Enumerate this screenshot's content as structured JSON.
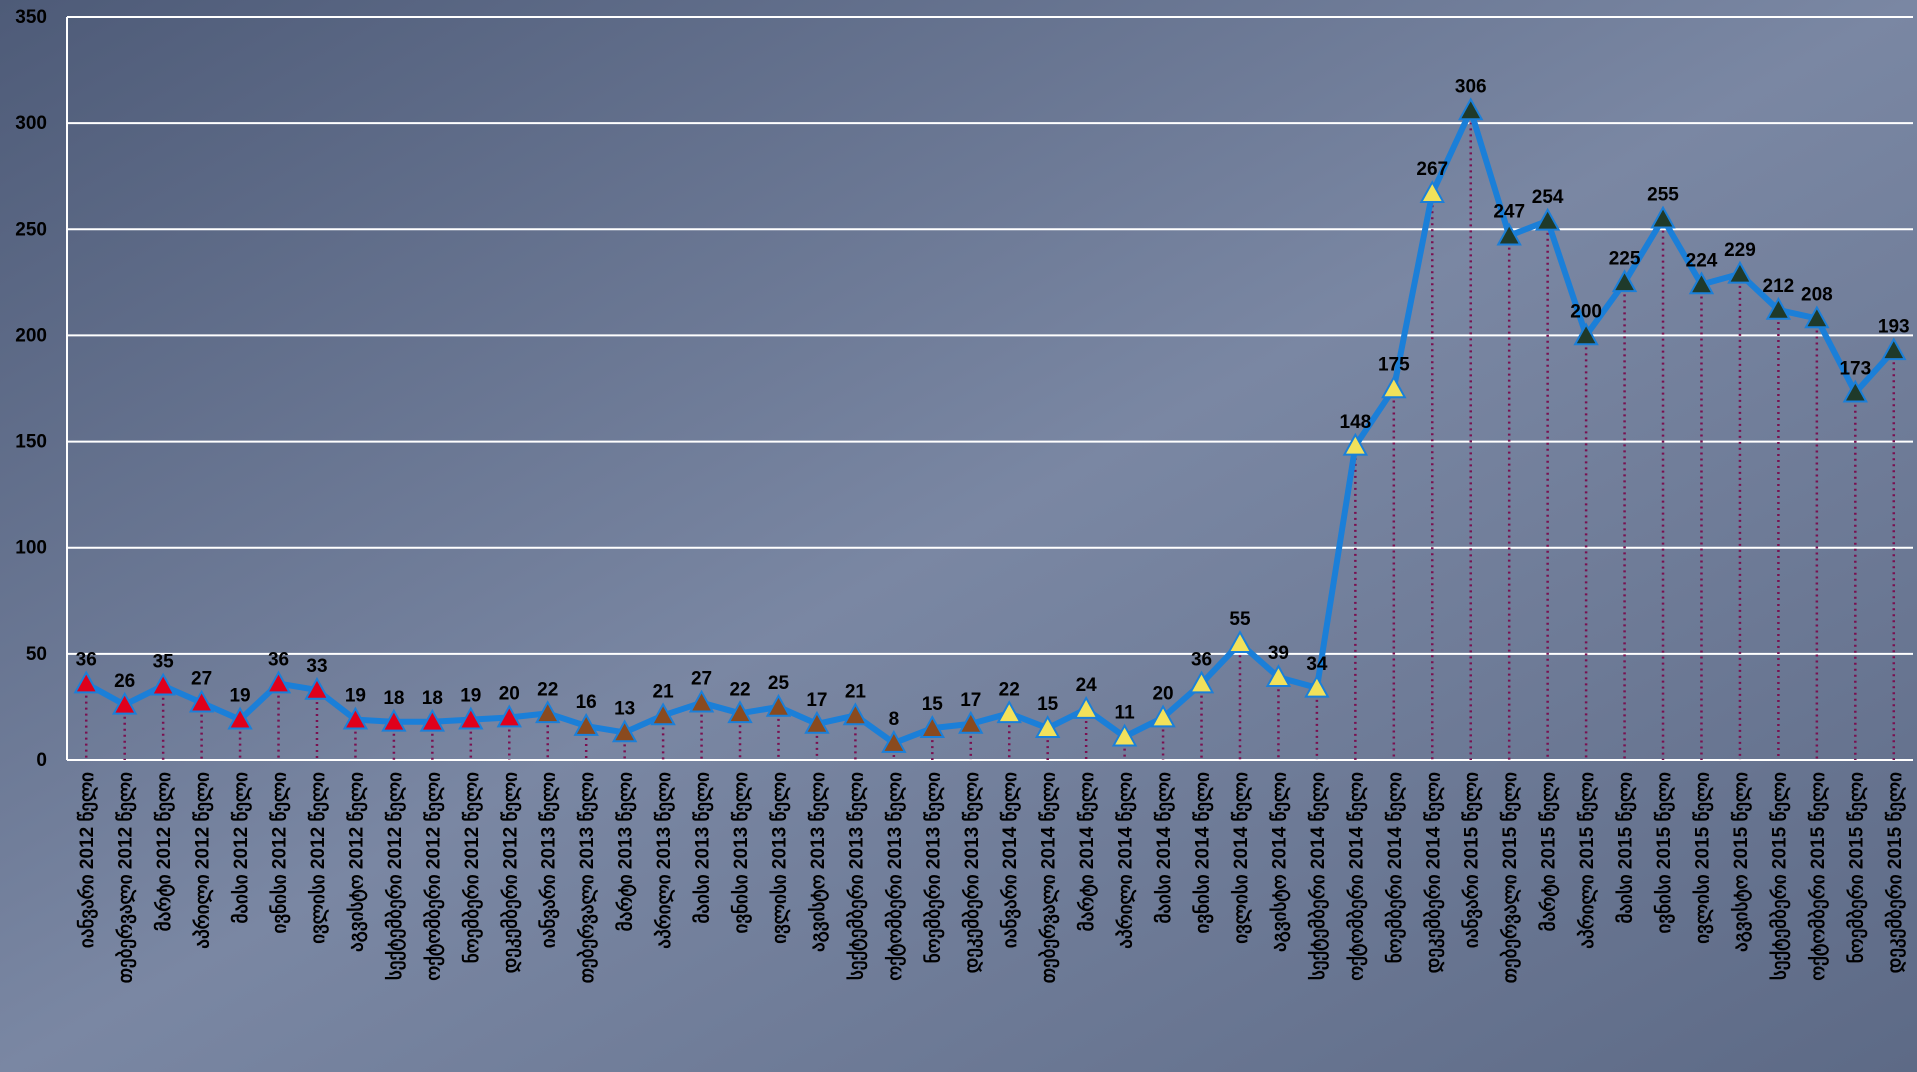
{
  "chart_data": {
    "type": "line",
    "categories": [
      "იანვარი 2012 წელი",
      "თებერვალი 2012 წელი",
      "მარტი 2012 წელი",
      "აპრილი 2012 წელი",
      "მაისი 2012 წელი",
      "ივნისი 2012 წელი",
      "ივლისი 2012 წელი",
      "აგვისტო 2012 წელი",
      "სექტემბერი 2012 წელი",
      "ოქტომბერი 2012 წელი",
      "ნოემბერი 2012 წელი",
      "დეკემბერი 2012 წელი",
      "იანვარი 2013 წელი",
      "თებერვალი 2013 წელი",
      "მარტი 2013 წელი",
      "აპრილი 2013 წელი",
      "მაისი 2013 წელი",
      "ივნისი 2013 წელი",
      "ივლისი 2013 წელი",
      "აგვისტო 2013 წელი",
      "სექტემბერი 2013 წელი",
      "ოქტომბერი 2013 წელი",
      "ნოემბერი 2013 წელი",
      "დეკემბერი 2013 წელი",
      "იანვარი 2014 წელი",
      "თებერვალი 2014 წელი",
      "მარტი 2014 წელი",
      "აპრილი 2014 წელი",
      "მაისი 2014 წელი",
      "ივნისი 2014 წელი",
      "ივლისი 2014 წელი",
      "აგვისტო 2014 წელი",
      "სექტემბერი 2014 წელი",
      "ოქტომბერი 2014 წელი",
      "ნოემბერი 2014 წელი",
      "დეკემბერი 2014 წელი",
      "იანვარი 2015 წელი",
      "თებერვალი 2015 წელი",
      "მარტი 2015 წელი",
      "აპრილი 2015 წელი",
      "მაისი 2015 წელი",
      "ივნისი 2015 წელი",
      "ივლისი 2015 წელი",
      "აგვისტო 2015 წელი",
      "სექტემბერი 2015 წელი",
      "ოქტომბერი 2015 წელი",
      "ნოემბერი 2015 წელი",
      "დეკემბერი 2015 წელი"
    ],
    "values": [
      36,
      26,
      35,
      27,
      19,
      36,
      33,
      19,
      18,
      18,
      19,
      20,
      22,
      16,
      13,
      21,
      27,
      22,
      25,
      17,
      21,
      8,
      15,
      17,
      22,
      15,
      24,
      11,
      20,
      36,
      55,
      39,
      34,
      148,
      175,
      267,
      306,
      247,
      254,
      200,
      225,
      255,
      224,
      229,
      212,
      208,
      173,
      193
    ],
    "color": "#1b7fd8",
    "marker_colors": [
      "#e0001b",
      "#e0001b",
      "#e0001b",
      "#e0001b",
      "#e0001b",
      "#e0001b",
      "#e0001b",
      "#e0001b",
      "#e0001b",
      "#e0001b",
      "#e0001b",
      "#e0001b",
      "#8a4a1e",
      "#8a4a1e",
      "#8a4a1e",
      "#8a4a1e",
      "#8a4a1e",
      "#8a4a1e",
      "#8a4a1e",
      "#8a4a1e",
      "#8a4a1e",
      "#8a4a1e",
      "#8a4a1e",
      "#8a4a1e",
      "#f2e15a",
      "#f2e15a",
      "#f2e15a",
      "#f2e15a",
      "#f2e15a",
      "#f2e15a",
      "#f2e15a",
      "#f2e15a",
      "#f2e15a",
      "#f2e15a",
      "#f2e15a",
      "#f2e15a",
      "#1f3a2a",
      "#1f3a2a",
      "#1f3a2a",
      "#1f3a2a",
      "#1f3a2a",
      "#1f3a2a",
      "#1f3a2a",
      "#1f3a2a",
      "#1f3a2a",
      "#1f3a2a",
      "#1f3a2a",
      "#1f3a2a"
    ],
    "ylim": [
      0,
      350
    ],
    "yticks": [
      0,
      50,
      100,
      150,
      200,
      250,
      300,
      350
    ],
    "grid": true
  }
}
